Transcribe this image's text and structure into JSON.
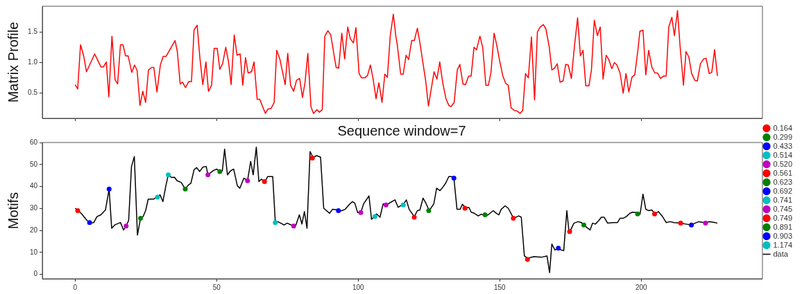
{
  "chart_data": [
    {
      "type": "line",
      "ylabel": "Matrix Profile",
      "xlim": [
        -11.6,
        242.8
      ],
      "ylim": [
        0.09,
        1.92
      ],
      "xticks": [
        0,
        50,
        100,
        150,
        200
      ],
      "yticks": [
        {
          "value": 0.5,
          "label": "0.5"
        },
        {
          "value": 1,
          "label": "1.0"
        },
        {
          "value": 1.5,
          "label": "1.5"
        }
      ],
      "tick_labels": "y",
      "grid": false,
      "legend": false,
      "marker": "none",
      "series": [
        {
          "color": "#ff0000",
          "x": [
            0,
            0.9,
            1.9,
            3,
            4,
            6.9,
            9.1,
            10,
            11,
            11.9,
            13,
            14.1,
            15,
            16,
            16.9,
            17.8,
            18.7,
            20,
            21,
            21.9,
            22.9,
            23.9,
            24.9,
            25.9,
            27,
            27.8,
            28.9,
            30.1,
            31.1,
            32.1,
            35.3,
            36.1,
            37.1,
            37.9,
            39,
            40.1,
            41.1,
            42,
            43.1,
            44.1,
            45.1,
            46.2,
            47.1,
            48.2,
            49.1,
            50.2,
            51.1,
            52.1,
            53.2,
            54.2,
            55.1,
            56.2,
            57.2,
            58.3,
            59.2,
            60.2,
            61.1,
            62.3,
            63.2,
            64.3,
            65.2,
            67.2,
            68.1,
            69.2,
            70.3,
            71.2,
            72.3,
            74.2,
            75.1,
            76.1,
            77.2,
            78.2,
            79.3,
            80.3,
            81.2,
            82.2,
            83.3,
            84.2,
            85.4,
            86.3,
            87.3,
            88.2,
            89.3,
            90.3,
            92.2,
            93.1,
            94.2,
            95.2,
            96.3,
            97.2,
            98.3,
            99.2,
            100.3,
            101.2,
            102.3,
            103.3,
            104.3,
            105.2,
            106.3,
            107.3,
            108.4,
            109.4,
            110.3,
            111.3,
            112.4,
            113.3,
            113.8,
            115,
            115.9,
            116.9,
            117.8,
            118.9,
            119.8,
            120.9,
            121.8,
            123.9,
            124.8,
            126.8,
            127.8,
            128.8,
            129.9,
            131,
            132,
            132.8,
            133.9,
            135,
            135.9,
            137,
            137.9,
            139,
            139.9,
            140.9,
            141.8,
            143,
            144,
            145.1,
            146,
            146.9,
            148,
            149,
            150,
            151.1,
            152.1,
            153,
            154,
            155.1,
            156.1,
            157.2,
            158.1,
            159.1,
            160.1,
            161.2,
            162.3,
            163.3,
            164.3,
            165.4,
            166.3,
            167.5,
            168.4,
            169.4,
            170.3,
            171.3,
            172.4,
            173.3,
            174.2,
            175.3,
            176.4,
            177.5,
            178.5,
            179.4,
            180.4,
            181.5,
            182.4,
            183.4,
            184.5,
            185.5,
            186.5,
            187.6,
            188.5,
            189.6,
            190.5,
            191.4,
            192.5,
            193.6,
            194.6,
            195.6,
            196.7,
            197.7,
            198.8,
            199.5,
            200.6,
            201.6,
            202.6,
            203.7,
            204.8,
            205.7,
            206.8,
            207.9,
            208.8,
            209.7,
            210.8,
            211.7,
            212.8,
            213.7,
            214.9,
            215.8,
            216.8,
            217.8,
            218.9,
            219.8,
            220.9,
            222,
            222.9,
            224,
            224.9,
            225.9,
            226.9
          ],
          "values": [
            0.64,
            0.57,
            1.29,
            1.11,
            0.85,
            1.14,
            0.93,
            0.93,
            1.01,
            0.44,
            1.43,
            0.72,
            0.65,
            1.29,
            1.29,
            1.11,
            1.11,
            0.84,
            0.96,
            0.87,
            0.3,
            0.53,
            0.35,
            0.88,
            0.92,
            0.92,
            0.52,
            0.96,
            1.1,
            1.1,
            1.36,
            1.18,
            0.65,
            0.68,
            0.59,
            0.69,
            0.69,
            1.53,
            1.61,
            1.06,
            0.64,
            1.01,
            0.53,
            0.63,
            1.23,
            1.23,
            0.89,
            0.98,
            1.25,
            1.01,
            0.64,
            1.45,
            1.12,
            1.14,
            0.63,
            1.08,
            0.83,
            0.85,
            1.01,
            0.4,
            0.4,
            0.17,
            0.24,
            0.25,
            0.35,
            1.2,
            1.06,
            0.64,
            1.15,
            0.63,
            0.53,
            0.71,
            0.74,
            0.43,
            0.67,
            1.15,
            0.28,
            0.17,
            0.23,
            0.19,
            0.23,
            1.43,
            1.52,
            1.45,
            0.92,
            0.91,
            1.48,
            1.06,
            1.58,
            1.39,
            1.32,
            1.57,
            0.82,
            0.75,
            0.75,
            0.79,
            0.96,
            0.75,
            0.41,
            0.67,
            0.35,
            0.81,
            0.76,
            1.43,
            1.79,
            1.43,
            1.29,
            0.81,
            0.81,
            1.12,
            1.05,
            1.36,
            1.36,
            1.56,
            1.32,
            0.68,
            0.29,
            0.85,
            0.73,
            1.01,
            0.66,
            0.41,
            0.3,
            0.28,
            0.35,
            0.88,
            0.97,
            0.65,
            0.64,
            0.78,
            0.78,
            1.25,
            1.21,
            1.43,
            1.24,
            0.63,
            0.63,
            0.84,
            1.48,
            1.27,
            1.02,
            0.78,
            0.66,
            0.63,
            0.26,
            0.22,
            0.21,
            0.17,
            0.22,
            0.82,
            0.75,
            1.42,
            0.39,
            1.5,
            1.58,
            1.62,
            1.55,
            1.25,
            0.88,
            0.91,
            0.98,
            0.68,
            0.7,
            0.97,
            0.96,
            0.74,
            1.27,
            1.73,
            1.11,
            1.2,
            0.62,
            0.62,
            0.88,
            1.69,
            1.44,
            1.58,
            0.73,
            1.12,
            1.05,
            0.9,
            1,
            0.96,
            0.83,
            0.5,
            0.82,
            0.52,
            0.76,
            0.8,
            1.2,
            1.51,
            1.53,
            0.8,
            1.2,
            0.93,
            0.83,
            0.83,
            0.74,
            0.78,
            0.78,
            1.58,
            1.74,
            1.44,
            1.85,
            1.27,
            0.63,
            1.18,
            1.09,
            0.82,
            0.71,
            0.7,
            0.98,
            1.06,
            1.07,
            0.82,
            0.84,
            1.21,
            0.78
          ]
        }
      ]
    },
    {
      "type": "scatter",
      "title": "Sequence window=7",
      "ylabel": "Motifs",
      "xlim": [
        -11.6,
        242.8
      ],
      "ylim": [
        -2,
        60
      ],
      "xticks": [
        0,
        50,
        100,
        150,
        200
      ],
      "yticks": [
        0,
        10,
        20,
        30,
        40,
        50,
        60
      ],
      "grid": false,
      "legend": "right",
      "marker": "circle",
      "series": [
        {
          "name": "0.164",
          "color": "#ff0000",
          "x": [
            0.9,
            66.9,
            83.8,
            119.8
          ],
          "values": [
            29,
            42.2,
            52.9,
            26
          ]
        },
        {
          "name": "0.299",
          "color": "#008000",
          "x": [
            23.1,
            38.9
          ],
          "values": [
            25.5,
            38.8
          ]
        },
        {
          "name": "0.433",
          "color": "#0000ff",
          "x": [
            5.1,
            12
          ],
          "values": [
            23.6,
            38.8
          ]
        },
        {
          "name": "0.514",
          "color": "#00bfbf",
          "x": [
            29.1,
            32.9
          ],
          "values": [
            35.1,
            45.3
          ]
        },
        {
          "name": "0.520",
          "color": "#bf00bf",
          "x": [
            18,
            46.9,
            60.9
          ],
          "values": [
            22,
            45.3,
            42.6
          ]
        },
        {
          "name": "0.561",
          "color": "#ff0000",
          "x": [
            137.7,
            154.8,
            159.8
          ],
          "values": [
            30.1,
            25.5,
            6.8
          ]
        },
        {
          "name": "0.623",
          "color": "#008000",
          "x": [
            51.1,
            124.9
          ],
          "values": [
            46.8,
            29
          ]
        },
        {
          "name": "0.692",
          "color": "#0000ff",
          "x": [
            93,
            133.8
          ],
          "values": [
            29,
            43.8
          ]
        },
        {
          "name": "0.741",
          "color": "#00bfbf",
          "x": [
            70.7,
            105.9
          ],
          "values": [
            23.6,
            26.3
          ]
        },
        {
          "name": "0.745",
          "color": "#bf00bf",
          "x": [
            77.2,
            100.9,
            109.8,
            222.7
          ],
          "values": [
            22,
            28.1,
            31.6,
            23.3
          ]
        },
        {
          "name": "0.749",
          "color": "#ff0000",
          "x": [
            174.7,
            204.7,
            213.9
          ],
          "values": [
            19.5,
            27.5,
            23.3
          ]
        },
        {
          "name": "0.891",
          "color": "#008000",
          "x": [
            144.8,
            179.7,
            198.7
          ],
          "values": [
            27.1,
            22.5,
            27.5
          ]
        },
        {
          "name": "0.903",
          "color": "#0000ff",
          "x": [
            170.7,
            217.7
          ],
          "values": [
            11.9,
            22.5
          ]
        },
        {
          "name": "1.174",
          "color": "#00bfbf",
          "x": [
            115.9
          ],
          "values": [
            31.6
          ]
        },
        {
          "name": "data",
          "type": "line",
          "marker": "none",
          "color": "#000000",
          "x": [
            0,
            1.1,
            2.1,
            4.2,
            5.3,
            6.6,
            7.7,
            9.1,
            10.7,
            12,
            12.9,
            14,
            16,
            17.1,
            18,
            18.9,
            19.9,
            20.9,
            22,
            23.1,
            24,
            24.9,
            25.8,
            26.9,
            27.8,
            28.8,
            30,
            31,
            32,
            32.9,
            34,
            35.1,
            36,
            37.5,
            38.9,
            40,
            40.9,
            42,
            42.9,
            44,
            45.1,
            46.3,
            46.9,
            48.9,
            50,
            51.1,
            52,
            52.8,
            53.8,
            54.9,
            56,
            57.3,
            58.2,
            59.6,
            60.9,
            62,
            62.9,
            64,
            64.9,
            65.8,
            67.1,
            68,
            69.8,
            70.7,
            71.6,
            73.8,
            74.9,
            77.2,
            78,
            79.2,
            80.1,
            81,
            81.9,
            83,
            84,
            85.4,
            86.7,
            87.8,
            89.9,
            90.9,
            93,
            94,
            95.4,
            96.7,
            97.9,
            98.8,
            99.8,
            100.9,
            101.9,
            103.8,
            104.7,
            105.7,
            106.5,
            107.7,
            108.8,
            109.9,
            113,
            114.1,
            116.1,
            117,
            118,
            119.8,
            120.9,
            121.8,
            122.9,
            123.9,
            125.1,
            126.7,
            127.7,
            128.9,
            129.8,
            130.9,
            132,
            132.9,
            133.8,
            134.9,
            136,
            136.8,
            138,
            139.1,
            139.9,
            141,
            142.4,
            143.5,
            144.8,
            145.9,
            147.7,
            148.8,
            149.7,
            150.5,
            151.9,
            153,
            154.9,
            156.7,
            157.6,
            158.7,
            159.8,
            162,
            164.7,
            166.7,
            167.6,
            168.4,
            169.5,
            170.7,
            171.7,
            172.6,
            173.7,
            174.4,
            174.8,
            176.2,
            177.7,
            178.8,
            179.7,
            180.7,
            181.9,
            182.8,
            183.8,
            185,
            185.9,
            186.9,
            188.1,
            190.3,
            191.6,
            192.5,
            193.6,
            194.7,
            196,
            196.9,
            198.4,
            199.6,
            200.6,
            201.6,
            202.7,
            203.7,
            204.9,
            206,
            207.5,
            208.8,
            210.2,
            211.5,
            213.7,
            215.7,
            217.7,
            219,
            220.3,
            222.1,
            224.3,
            226.1,
            226.9
          ],
          "values": [
            30.1,
            29,
            27.8,
            24.5,
            23.3,
            23.6,
            26.3,
            27.1,
            29.3,
            38.8,
            21,
            22.5,
            23.6,
            20.2,
            22,
            24.5,
            49.1,
            53.6,
            17.9,
            25.5,
            26.3,
            29,
            34.2,
            34.3,
            34.3,
            35.1,
            36.2,
            33.1,
            40,
            45.3,
            44.1,
            44.2,
            42.6,
            41.8,
            38.8,
            40.7,
            41.5,
            47.6,
            48.6,
            46.8,
            48.8,
            49.1,
            45.3,
            47.3,
            47.9,
            46.8,
            47.1,
            57,
            45.3,
            47.1,
            47.9,
            40.3,
            39.2,
            43.8,
            42.6,
            51.4,
            45.3,
            57.9,
            42.2,
            43.3,
            42.2,
            44.5,
            44.5,
            24,
            24,
            22.5,
            23.3,
            22,
            22.5,
            27.1,
            22.9,
            28.6,
            21,
            55.9,
            53.3,
            54,
            53.3,
            30.1,
            27.8,
            29.6,
            29.3,
            28.9,
            29.6,
            31.6,
            33.1,
            32.4,
            28.1,
            28.1,
            32.1,
            35.7,
            25.1,
            26.3,
            27.5,
            26,
            32.1,
            31.6,
            33.9,
            30.5,
            32.1,
            33.9,
            29.6,
            26.3,
            29,
            29.3,
            34.7,
            32.4,
            29,
            32.1,
            39.2,
            38.1,
            39.5,
            41.5,
            44.5,
            44.5,
            43.8,
            29.6,
            29.6,
            31.9,
            30.1,
            30.5,
            28.3,
            27.8,
            26.6,
            27.4,
            26.6,
            27.1,
            29,
            27.8,
            27.1,
            29.6,
            31.2,
            30.1,
            25.5,
            26.6,
            26,
            8.4,
            7.3,
            8.1,
            7.8,
            8.4,
            0.8,
            13.8,
            11.1,
            11.9,
            11.1,
            10.8,
            29,
            20.2,
            19.5,
            23.3,
            24,
            23.6,
            22.5,
            21.4,
            20.2,
            23.3,
            22.9,
            24.5,
            26,
            26,
            23.3,
            23.6,
            23.6,
            25.5,
            25.5,
            26.3,
            27.8,
            28.3,
            28.1,
            27.5,
            36.5,
            29.6,
            29,
            29.3,
            27.5,
            28.6,
            26.3,
            23.6,
            24,
            23.6,
            23.3,
            22.9,
            22.5,
            23.3,
            24,
            23.6,
            24,
            23.6,
            23.3
          ]
        }
      ]
    }
  ]
}
